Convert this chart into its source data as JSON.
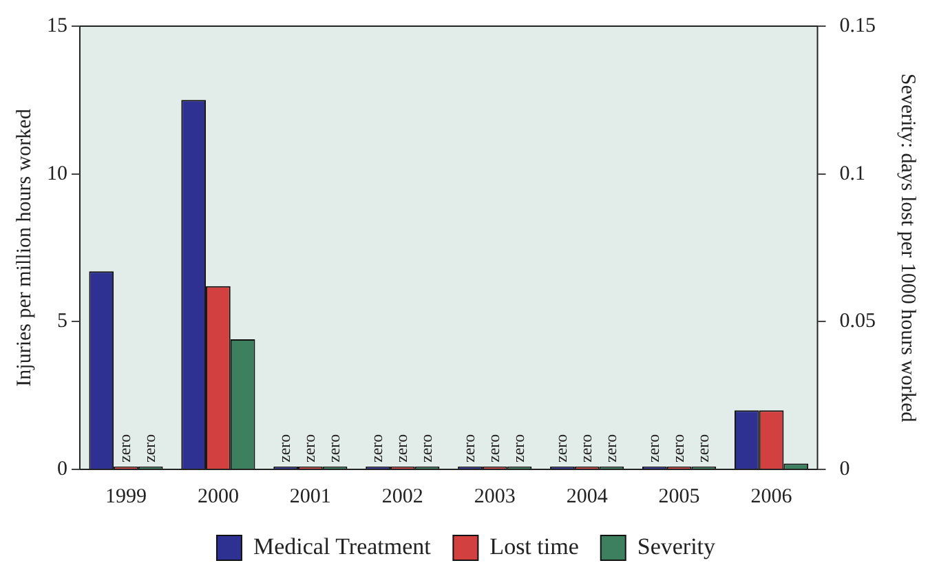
{
  "chart_data": {
    "type": "bar",
    "categories": [
      "1999",
      "2000",
      "2001",
      "2002",
      "2003",
      "2004",
      "2005",
      "2006"
    ],
    "ylabel": "Injuries per million hours worked",
    "y2label": "Severity: days lost per 1000 hours worked",
    "ylim": [
      0,
      15
    ],
    "yticks": [
      0,
      5,
      10,
      15
    ],
    "y2lim": [
      0,
      0.15
    ],
    "y2ticks": [
      0,
      0.05,
      0.1,
      0.15
    ],
    "series": [
      {
        "name": "Medical Treatment",
        "color": "#2e3192",
        "values": [
          6.7,
          12.5,
          0,
          0,
          0,
          0,
          0,
          2.0
        ],
        "value_labels": [
          null,
          null,
          "zero",
          "zero",
          "zero",
          "zero",
          "zero",
          null
        ]
      },
      {
        "name": "Lost time",
        "color": "#d2403f",
        "values": [
          0,
          6.2,
          0,
          0,
          0,
          0,
          0,
          2.0
        ],
        "value_labels": [
          "zero",
          null,
          "zero",
          "zero",
          "zero",
          "zero",
          "zero",
          null
        ]
      },
      {
        "name": "Severity",
        "color": "#3d8060",
        "axis": "y2",
        "values": [
          0,
          0.044,
          0,
          0,
          0,
          0,
          0,
          0.002
        ],
        "value_labels": [
          "zero",
          null,
          "zero",
          "zero",
          "zero",
          "zero",
          "zero",
          null
        ]
      }
    ],
    "grid": false,
    "legend": "bottom"
  }
}
